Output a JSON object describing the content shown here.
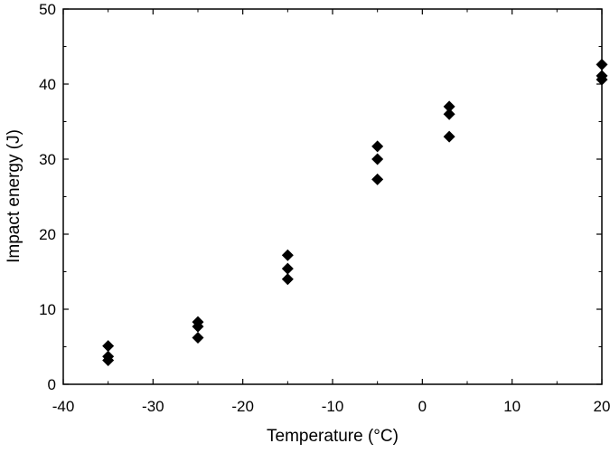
{
  "chart_data": {
    "type": "scatter",
    "title": "",
    "xlabel": "Temperature (°C)",
    "ylabel": "Impact energy (J)",
    "xlim": [
      -40,
      20
    ],
    "ylim": [
      0,
      50
    ],
    "x_ticks": [
      -40,
      -30,
      -20,
      -10,
      0,
      10,
      20
    ],
    "y_ticks": [
      0,
      10,
      20,
      30,
      40,
      50
    ],
    "grid": false,
    "legend": "none",
    "marker": "diamond",
    "marker_color": "#000000",
    "series": [
      {
        "points": [
          {
            "x": -35,
            "y": 5.1
          },
          {
            "x": -35,
            "y": 3.7
          },
          {
            "x": -35,
            "y": 3.2
          },
          {
            "x": -25,
            "y": 8.3
          },
          {
            "x": -25,
            "y": 7.7
          },
          {
            "x": -25,
            "y": 6.2
          },
          {
            "x": -15,
            "y": 17.2
          },
          {
            "x": -15,
            "y": 15.4
          },
          {
            "x": -15,
            "y": 14.0
          },
          {
            "x": -5,
            "y": 31.7
          },
          {
            "x": -5,
            "y": 30.0
          },
          {
            "x": -5,
            "y": 27.3
          },
          {
            "x": 3,
            "y": 37.0
          },
          {
            "x": 3,
            "y": 36.0
          },
          {
            "x": 3,
            "y": 33.0
          },
          {
            "x": 20,
            "y": 42.6
          },
          {
            "x": 20,
            "y": 41.1
          },
          {
            "x": 20,
            "y": 40.6
          }
        ]
      }
    ]
  }
}
